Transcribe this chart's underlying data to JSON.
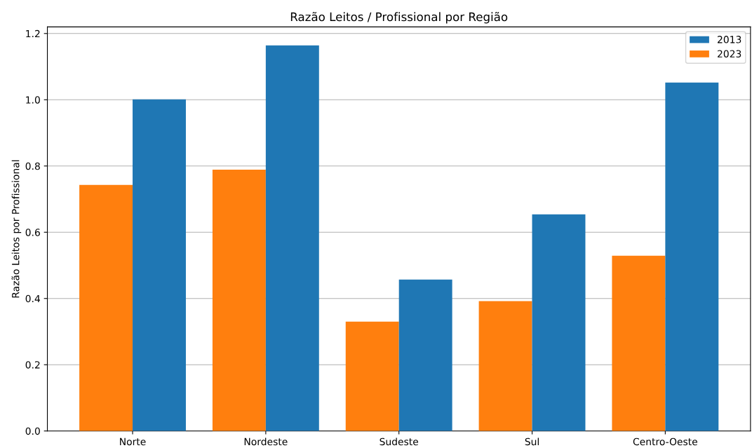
{
  "chart_data": {
    "type": "bar",
    "title": "Razão Leitos / Profissional por Região",
    "ylabel": "Razão Leitos por Profissional",
    "categories": [
      "Norte",
      "Nordeste",
      "Sudeste",
      "Sul",
      "Centro-Oeste"
    ],
    "series": [
      {
        "name": "2023",
        "color": "#ff7f0e",
        "values": [
          0.743,
          0.789,
          0.33,
          0.392,
          0.529
        ]
      },
      {
        "name": "2013",
        "color": "#1f77b4",
        "values": [
          1.001,
          1.164,
          0.457,
          0.654,
          1.052
        ]
      }
    ],
    "ylim": [
      0,
      1.22
    ],
    "yticks": [
      {
        "value": 0,
        "label": "0.0"
      },
      0.2,
      0.4,
      0.6,
      0.8,
      {
        "value": 1,
        "label": "1.0"
      },
      1.2
    ],
    "grid": "y",
    "legend": "top right"
  }
}
